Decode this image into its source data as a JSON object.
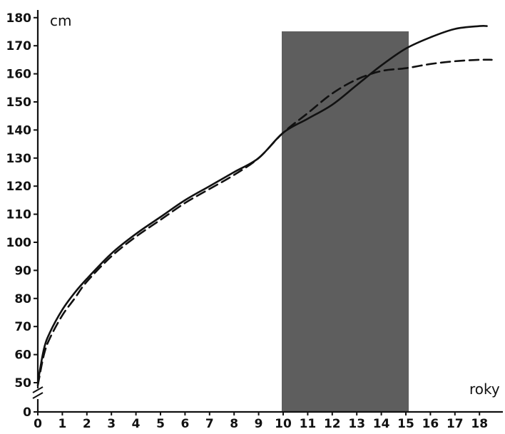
{
  "chart_data": {
    "type": "line",
    "title": "",
    "ylabel": "cm",
    "xlabel": "roky",
    "xlim": [
      0,
      18.5
    ],
    "ylim": [
      50,
      180
    ],
    "y_axis_break": true,
    "x_ticks": [
      "0",
      "1",
      "2",
      "3",
      "4",
      "5",
      "6",
      "7",
      "8",
      "9",
      "10",
      "11",
      "12",
      "13",
      "14",
      "15",
      "16",
      "17",
      "18"
    ],
    "y_ticks": [
      "0",
      "50",
      "60",
      "70",
      "80",
      "90",
      "100",
      "110",
      "120",
      "130",
      "140",
      "150",
      "160",
      "170",
      "180"
    ],
    "shaded_region": {
      "x_start": 10,
      "x_end": 15,
      "color": "#5e5e5e"
    },
    "grid": false,
    "legend": "none",
    "series": [
      {
        "style": "solid",
        "color": "#111111",
        "x": [
          0,
          0.25,
          0.5,
          1,
          1.5,
          2,
          3,
          4,
          5,
          6,
          7,
          8,
          9,
          10,
          11,
          12,
          13,
          14,
          15,
          16,
          17,
          18,
          18.3
        ],
        "values": [
          50,
          62,
          68,
          76,
          82,
          87,
          96,
          103,
          109,
          115,
          120,
          125,
          130,
          139,
          144,
          149,
          156,
          163,
          169,
          173,
          176,
          177,
          177
        ]
      },
      {
        "style": "dashed",
        "color": "#111111",
        "x": [
          0,
          0.25,
          0.5,
          1,
          1.5,
          2,
          3,
          4,
          5,
          6,
          7,
          8,
          9,
          10,
          11,
          12,
          13,
          14,
          15,
          16,
          17,
          18,
          18.5
        ],
        "values": [
          49,
          60,
          66,
          74,
          80,
          86,
          95,
          102,
          108,
          114,
          119,
          124,
          130,
          139,
          146,
          153,
          158,
          161,
          162,
          163.5,
          164.5,
          165,
          165
        ]
      }
    ]
  }
}
